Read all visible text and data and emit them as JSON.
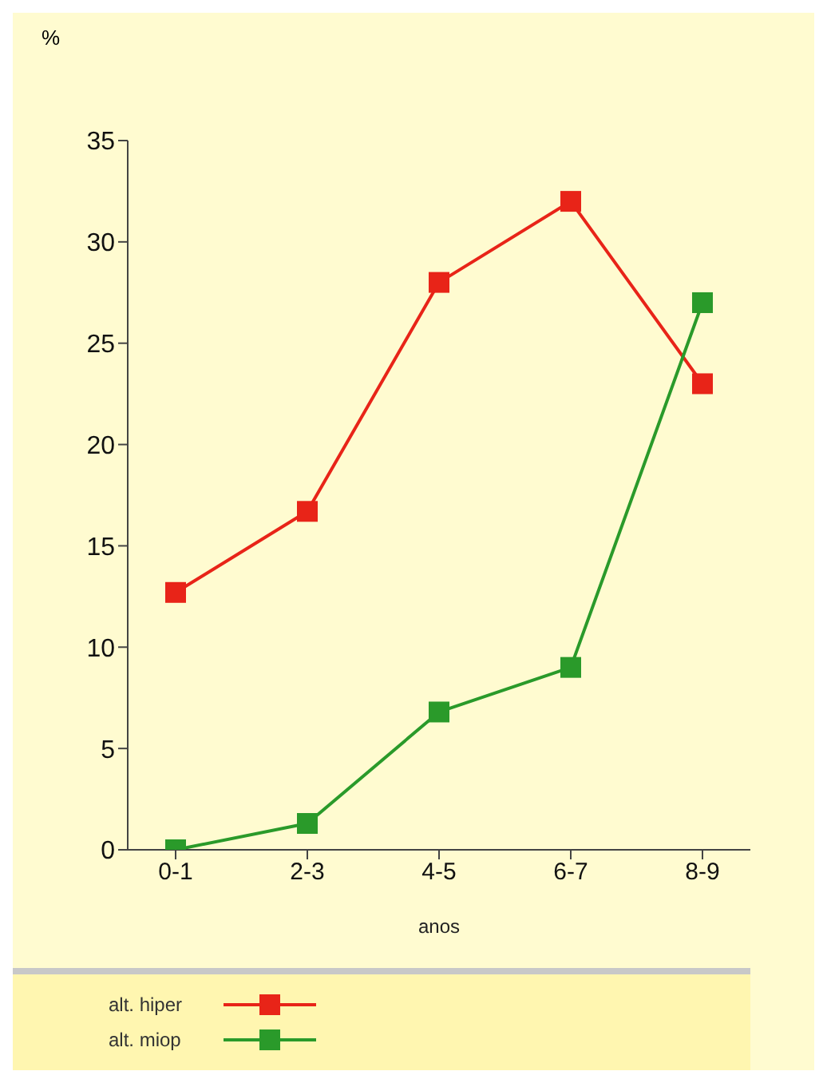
{
  "chart_data": {
    "type": "line",
    "ylabel": "%",
    "xlabel": "anos",
    "categories": [
      "0-1",
      "2-3",
      "4-5",
      "6-7",
      "8-9"
    ],
    "series": [
      {
        "name": "alt. hiper",
        "color": "#e82418",
        "values": [
          12.7,
          16.7,
          28,
          32,
          23
        ]
      },
      {
        "name": "alt. miop",
        "color": "#2a9a2a",
        "values": [
          0,
          1.3,
          6.8,
          9,
          27
        ]
      }
    ],
    "ylim": [
      0,
      35
    ],
    "yticks": [
      0,
      5,
      10,
      15,
      20,
      25,
      30,
      35
    ],
    "grid": false,
    "legend": "bottom",
    "marker": "square",
    "line_style": "solid"
  }
}
